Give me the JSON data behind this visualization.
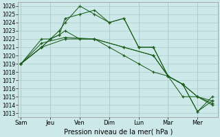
{
  "xlabel": "Pression niveau de la mer( hPa )",
  "bg_color": "#cce8e8",
  "grid_color": "#aacccc",
  "line_color": "#1a5c1a",
  "tick_labels": [
    "Sam",
    "Jeu",
    "Ven",
    "Dim",
    "Lun",
    "Mar",
    "Mer"
  ],
  "x_ticks": [
    0,
    1,
    2,
    3,
    4,
    5,
    6
  ],
  "xlim": [
    -0.1,
    6.7
  ],
  "ylim": [
    1012.5,
    1026.5
  ],
  "yticks": [
    1013,
    1014,
    1015,
    1016,
    1017,
    1018,
    1019,
    1020,
    1021,
    1022,
    1023,
    1024,
    1025,
    1026
  ],
  "series": [
    {
      "x": [
        0,
        0.7,
        1.0,
        1.3,
        1.5,
        2.0,
        2.5,
        3.0,
        3.5,
        4.0,
        4.5,
        5.0,
        5.5,
        6.0,
        6.5
      ],
      "y": [
        1019,
        1021,
        1022,
        1023,
        1024,
        1026,
        1025,
        1024,
        1024.5,
        1021,
        1021,
        1017.5,
        1016.5,
        1013.2,
        1015
      ]
    },
    {
      "x": [
        0,
        0.7,
        1.0,
        1.3,
        1.5,
        2.0,
        2.5,
        3.0,
        3.5,
        4.0,
        4.5,
        5.0,
        5.5,
        6.0,
        6.5
      ],
      "y": [
        1019,
        1021,
        1022,
        1022.5,
        1024.5,
        1025,
        1025.5,
        1024,
        1024.5,
        1021,
        1021,
        1017.5,
        1016.5,
        1013.2,
        1014.5
      ]
    },
    {
      "x": [
        0,
        0.7,
        1.5,
        2.5,
        3.5,
        4.5,
        5.0,
        5.5,
        6.0,
        6.5
      ],
      "y": [
        1019,
        1021,
        1022,
        1022,
        1021,
        1020,
        1017.5,
        1016.5,
        1015,
        1014.2
      ]
    },
    {
      "x": [
        0,
        0.7,
        1.5,
        2.5,
        3.5,
        4.5,
        5.0,
        5.5,
        6.0,
        6.5
      ],
      "y": [
        1019,
        1021.5,
        1022.2,
        1022,
        1021,
        1020,
        1017.5,
        1016.5,
        1015,
        1014.0
      ]
    },
    {
      "x": [
        0,
        0.7,
        1.0,
        1.3,
        1.5,
        2.0,
        2.5,
        3.0,
        3.5,
        4.0,
        4.5,
        5.0,
        5.5,
        6.0,
        6.5
      ],
      "y": [
        1019,
        1022,
        1022,
        1022.5,
        1023,
        1022,
        1022,
        1021,
        1020,
        1019,
        1018,
        1017.5,
        1015,
        1015,
        1014.5
      ]
    }
  ],
  "xlabel_fontsize": 7,
  "ytick_fontsize": 5.5,
  "xtick_fontsize": 6
}
